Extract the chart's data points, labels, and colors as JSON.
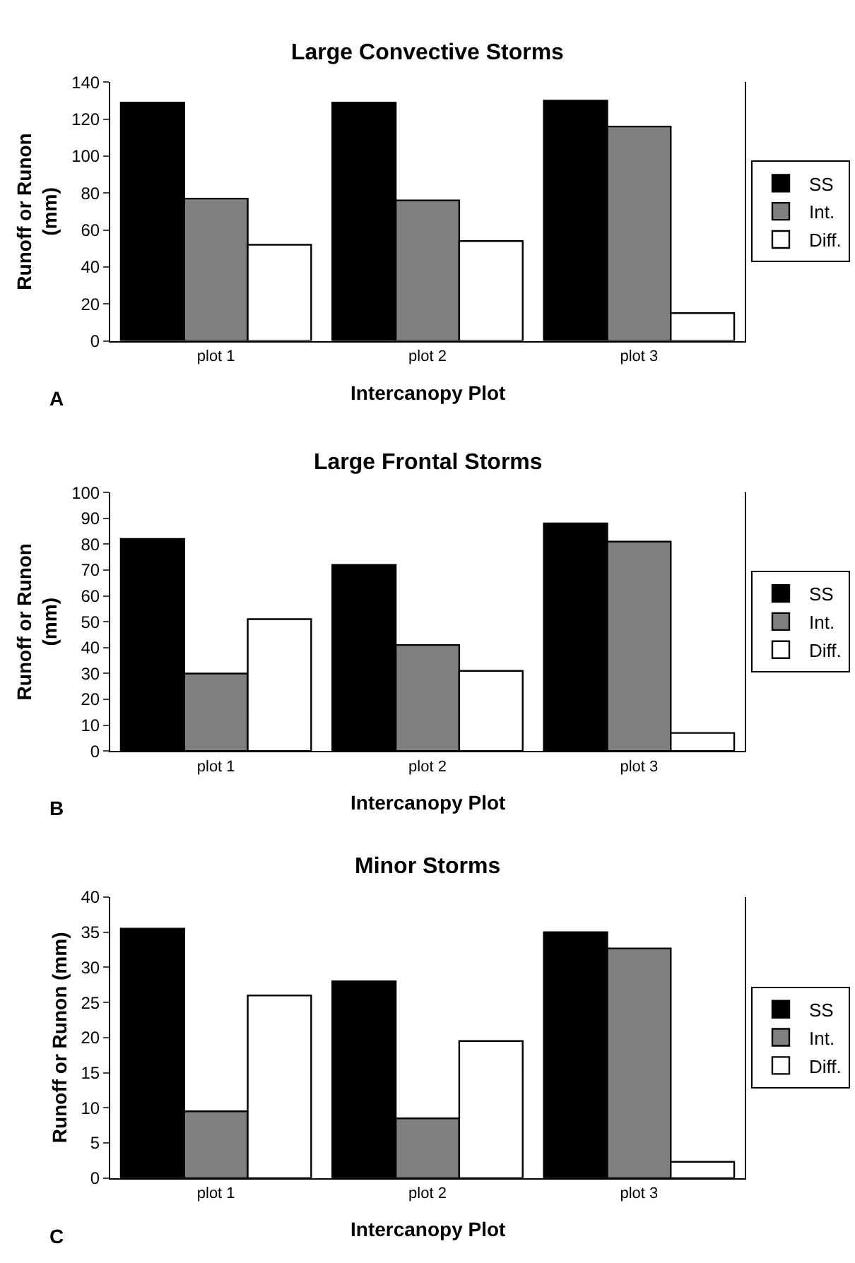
{
  "chart_data": [
    {
      "type": "bar",
      "title": "Large Convective Storms",
      "xlabel": "Intercanopy Plot",
      "ylabel": "Runoff or Runon\n(mm)",
      "categories": [
        "plot 1",
        "plot 2",
        "plot 3"
      ],
      "series": [
        {
          "name": "SS",
          "color": "#000000",
          "values": [
            129,
            129,
            130
          ]
        },
        {
          "name": "Int.",
          "color": "#808080",
          "values": [
            77,
            76,
            116
          ]
        },
        {
          "name": "Diff.",
          "color": "#ffffff",
          "values": [
            52,
            54,
            15
          ]
        }
      ],
      "ylim": [
        0,
        140
      ],
      "yticks": [
        0,
        20,
        40,
        60,
        80,
        100,
        120,
        140
      ],
      "grid": false,
      "legend": "right",
      "annotations": [
        "A"
      ]
    },
    {
      "type": "bar",
      "title": "Large Frontal Storms",
      "xlabel": "Intercanopy Plot",
      "ylabel": "Runoff or Runon\n(mm)",
      "categories": [
        "plot 1",
        "plot 2",
        "plot 3"
      ],
      "series": [
        {
          "name": "SS",
          "color": "#000000",
          "values": [
            82,
            72,
            88
          ]
        },
        {
          "name": "Int.",
          "color": "#808080",
          "values": [
            30,
            41,
            81
          ]
        },
        {
          "name": "Diff.",
          "color": "#ffffff",
          "values": [
            51,
            31,
            7
          ]
        }
      ],
      "ylim": [
        0,
        100
      ],
      "yticks": [
        0,
        10,
        20,
        30,
        40,
        50,
        60,
        70,
        80,
        90,
        100
      ],
      "grid": false,
      "legend": "right",
      "annotations": [
        "B"
      ]
    },
    {
      "type": "bar",
      "title": "Minor Storms",
      "xlabel": "Intercanopy Plot",
      "ylabel": "Runoff or Runon (mm)",
      "categories": [
        "plot 1",
        "plot 2",
        "plot 3"
      ],
      "series": [
        {
          "name": "SS",
          "color": "#000000",
          "values": [
            35.5,
            28,
            35
          ]
        },
        {
          "name": "Int.",
          "color": "#808080",
          "values": [
            9.5,
            8.5,
            32.7
          ]
        },
        {
          "name": "Diff.",
          "color": "#ffffff",
          "values": [
            26,
            19.5,
            2.3
          ]
        }
      ],
      "ylim": [
        0,
        40
      ],
      "yticks": [
        0,
        5,
        10,
        15,
        20,
        25,
        30,
        35,
        40
      ],
      "grid": false,
      "legend": "right",
      "annotations": [
        "C"
      ]
    }
  ]
}
